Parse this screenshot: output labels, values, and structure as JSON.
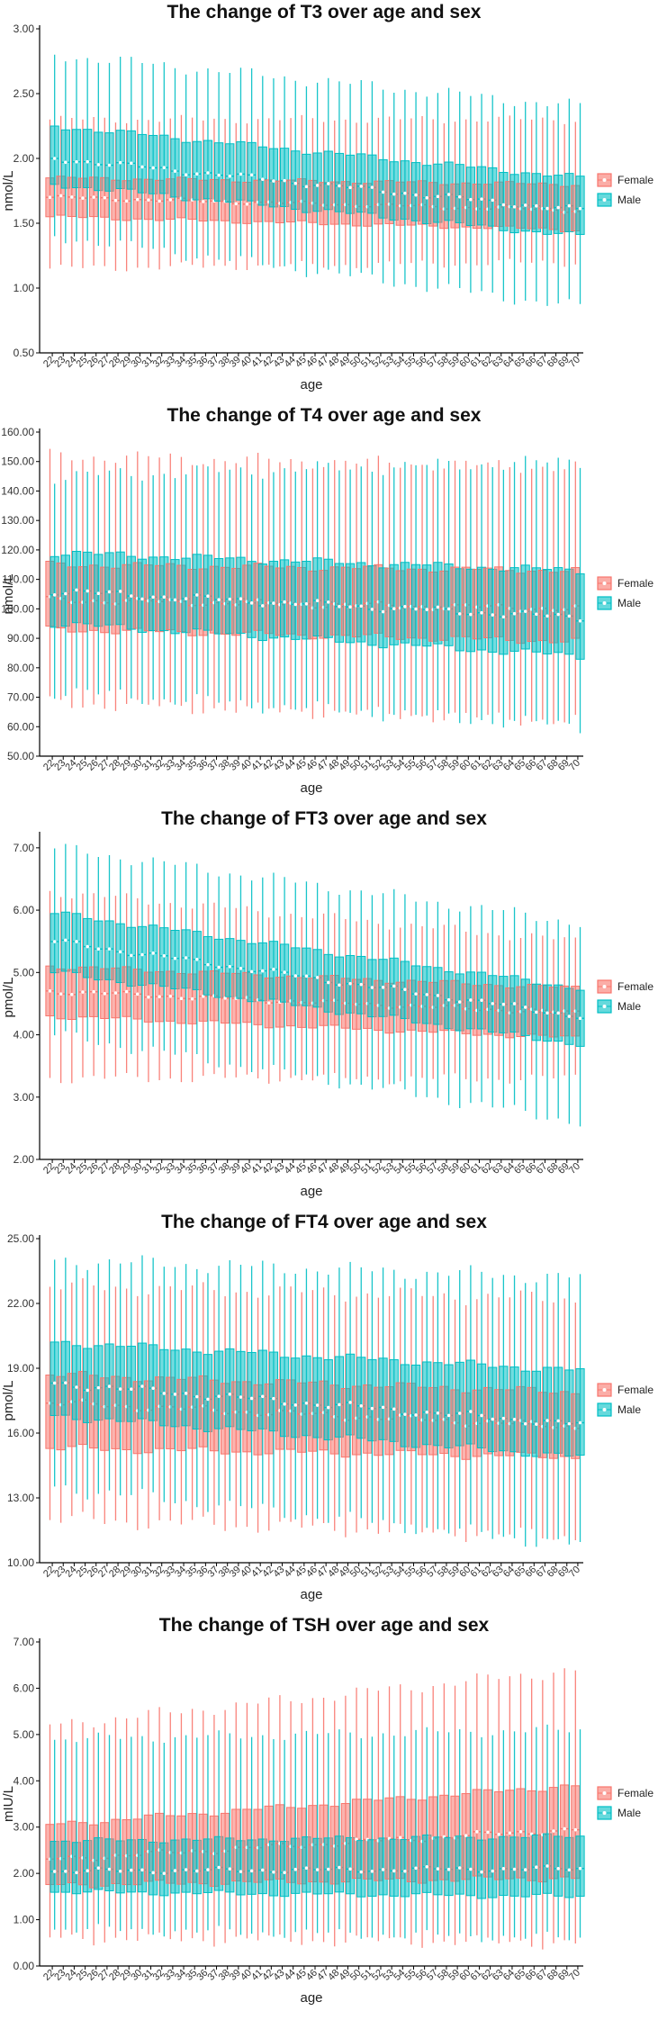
{
  "colors": {
    "female": "#F8766D",
    "male": "#00BFC4",
    "overlap": "#6C9E9A",
    "axis": "#000000"
  },
  "chart_data": [
    {
      "type": "boxplot",
      "title": "The change of T3 over age and sex",
      "xlabel": "age",
      "ylabel": "nmol/L",
      "ylim": [
        0.5,
        3.0
      ],
      "yticks": [
        "0.50",
        "1.00",
        "1.50",
        "2.00",
        "2.50",
        "3.00"
      ],
      "categories": [
        "22",
        "23",
        "24",
        "25",
        "26",
        "27",
        "28",
        "29",
        "30",
        "31",
        "32",
        "33",
        "34",
        "35",
        "36",
        "37",
        "38",
        "39",
        "40",
        "41",
        "42",
        "43",
        "44",
        "45",
        "46",
        "47",
        "48",
        "49",
        "50",
        "51",
        "52",
        "53",
        "54",
        "55",
        "56",
        "57",
        "58",
        "59",
        "60",
        "61",
        "62",
        "63",
        "64",
        "65",
        "66",
        "67",
        "68",
        "69",
        "70"
      ],
      "legend": [
        "Female",
        "Male"
      ],
      "series": [
        {
          "name": "Female",
          "median_start": 1.7,
          "median_end": 1.6,
          "q1_start": 1.55,
          "q1_end": 1.45,
          "q3_start": 1.85,
          "q3_end": 1.8,
          "low_start": 1.15,
          "low_end": 1.2,
          "high_start": 2.3,
          "high_end": 2.3
        },
        {
          "name": "Male",
          "median_start": 2.0,
          "median_end": 1.6,
          "q1_start": 1.8,
          "q1_end": 1.4,
          "q3_start": 2.25,
          "q3_end": 1.85,
          "low_start": 1.4,
          "low_end": 0.85,
          "high_start": 2.8,
          "high_end": 2.4
        }
      ]
    },
    {
      "type": "boxplot",
      "title": "The change of T4 over age and sex",
      "xlabel": "age",
      "ylabel": "nmol/L",
      "ylim": [
        50,
        160
      ],
      "yticks": [
        "50.00",
        "60.00",
        "70.00",
        "80.00",
        "90.00",
        "100.00",
        "110.00",
        "120.00",
        "130.00",
        "140.00",
        "150.00",
        "160.00"
      ],
      "categories": [
        "22",
        "23",
        "24",
        "25",
        "26",
        "27",
        "28",
        "29",
        "30",
        "31",
        "32",
        "33",
        "34",
        "35",
        "36",
        "37",
        "38",
        "39",
        "40",
        "41",
        "42",
        "43",
        "44",
        "45",
        "46",
        "47",
        "48",
        "49",
        "50",
        "51",
        "52",
        "53",
        "54",
        "55",
        "56",
        "57",
        "58",
        "59",
        "60",
        "61",
        "62",
        "63",
        "64",
        "65",
        "66",
        "67",
        "68",
        "69",
        "70"
      ],
      "legend": [
        "Female",
        "Male"
      ],
      "series": [
        {
          "name": "Female",
          "median_start": 103,
          "median_end": 100,
          "q1_start": 93,
          "q1_end": 89,
          "q3_start": 115,
          "q3_end": 113,
          "low_start": 68,
          "low_end": 62,
          "high_start": 152,
          "high_end": 148
        },
        {
          "name": "Male",
          "median_start": 106,
          "median_end": 97,
          "q1_start": 95,
          "q1_end": 84,
          "q3_start": 119,
          "q3_end": 113,
          "low_start": 72,
          "low_end": 60,
          "high_start": 145,
          "high_end": 150
        }
      ]
    },
    {
      "type": "boxplot",
      "title": "The change of FT3 over age and sex",
      "xlabel": "age",
      "ylabel": "pmol/L",
      "ylim": [
        2.0,
        7.2
      ],
      "yticks": [
        "2.00",
        "3.00",
        "4.00",
        "5.00",
        "6.00",
        "7.00"
      ],
      "categories": [
        "22",
        "23",
        "24",
        "25",
        "26",
        "27",
        "28",
        "29",
        "30",
        "31",
        "32",
        "33",
        "34",
        "35",
        "36",
        "37",
        "38",
        "39",
        "40",
        "41",
        "42",
        "43",
        "44",
        "45",
        "46",
        "47",
        "48",
        "49",
        "50",
        "51",
        "52",
        "53",
        "54",
        "55",
        "56",
        "57",
        "58",
        "59",
        "60",
        "61",
        "62",
        "63",
        "64",
        "65",
        "66",
        "67",
        "68",
        "69",
        "70"
      ],
      "legend": [
        "Female",
        "Male"
      ],
      "series": [
        {
          "name": "Female",
          "median_start": 4.7,
          "median_end": 4.35,
          "q1_start": 4.3,
          "q1_end": 3.95,
          "q3_start": 5.1,
          "q3_end": 4.75,
          "low_start": 3.3,
          "low_end": 3.3,
          "high_start": 6.3,
          "high_end": 5.5
        },
        {
          "name": "Male",
          "median_start": 5.5,
          "median_end": 4.3,
          "q1_start": 5.0,
          "q1_end": 3.85,
          "q3_start": 5.95,
          "q3_end": 4.75,
          "low_start": 4.0,
          "low_end": 2.6,
          "high_start": 7.0,
          "high_end": 5.8
        }
      ]
    },
    {
      "type": "boxplot",
      "title": "The change of FT4 over age and sex",
      "xlabel": "age",
      "ylabel": "pmol/L",
      "ylim": [
        10,
        25
      ],
      "yticks": [
        "10.00",
        "13.00",
        "16.00",
        "19.00",
        "22.00",
        "25.00"
      ],
      "categories": [
        "22",
        "23",
        "24",
        "25",
        "26",
        "27",
        "28",
        "29",
        "30",
        "31",
        "32",
        "33",
        "34",
        "35",
        "36",
        "37",
        "38",
        "39",
        "40",
        "41",
        "42",
        "43",
        "44",
        "45",
        "46",
        "47",
        "48",
        "49",
        "50",
        "51",
        "52",
        "53",
        "54",
        "55",
        "56",
        "57",
        "58",
        "59",
        "60",
        "61",
        "62",
        "63",
        "64",
        "65",
        "66",
        "67",
        "68",
        "69",
        "70"
      ],
      "legend": [
        "Female",
        "Male"
      ],
      "series": [
        {
          "name": "Female",
          "median_start": 17.4,
          "median_end": 16.3,
          "q1_start": 15.3,
          "q1_end": 14.9,
          "q3_start": 18.7,
          "q3_end": 17.9,
          "low_start": 12.0,
          "low_end": 11.2,
          "high_start": 22.8,
          "high_end": 22.2
        },
        {
          "name": "Male",
          "median_start": 18.3,
          "median_end": 16.4,
          "q1_start": 16.8,
          "q1_end": 14.9,
          "q3_start": 20.2,
          "q3_end": 18.9,
          "low_start": 13.5,
          "low_end": 10.8,
          "high_start": 24.0,
          "high_end": 23.2
        }
      ]
    },
    {
      "type": "boxplot",
      "title": "The change of TSH over age and sex",
      "xlabel": "age",
      "ylabel": "mIU/L",
      "ylim": [
        0.0,
        7.0
      ],
      "yticks": [
        "0.00",
        "1.00",
        "2.00",
        "3.00",
        "4.00",
        "5.00",
        "6.00",
        "7.00"
      ],
      "categories": [
        "22",
        "23",
        "24",
        "25",
        "26",
        "27",
        "28",
        "29",
        "30",
        "31",
        "32",
        "33",
        "34",
        "35",
        "36",
        "37",
        "38",
        "39",
        "40",
        "41",
        "42",
        "43",
        "44",
        "45",
        "46",
        "47",
        "48",
        "49",
        "50",
        "51",
        "52",
        "53",
        "54",
        "55",
        "56",
        "57",
        "58",
        "59",
        "60",
        "61",
        "62",
        "63",
        "64",
        "65",
        "66",
        "67",
        "68",
        "69",
        "70"
      ],
      "legend": [
        "Female",
        "Male"
      ],
      "series": [
        {
          "name": "Female",
          "median_start": 2.3,
          "median_end": 2.95,
          "q1_start": 1.75,
          "q1_end": 1.9,
          "q3_start": 3.05,
          "q3_end": 3.9,
          "low_start": 0.6,
          "low_end": 0.5,
          "high_start": 5.2,
          "high_end": 6.4
        },
        {
          "name": "Male",
          "median_start": 2.05,
          "median_end": 2.1,
          "q1_start": 1.6,
          "q1_end": 1.5,
          "q3_start": 2.7,
          "q3_end": 2.8,
          "low_start": 0.8,
          "low_end": 0.6,
          "high_start": 4.9,
          "high_end": 5.1
        }
      ]
    }
  ]
}
